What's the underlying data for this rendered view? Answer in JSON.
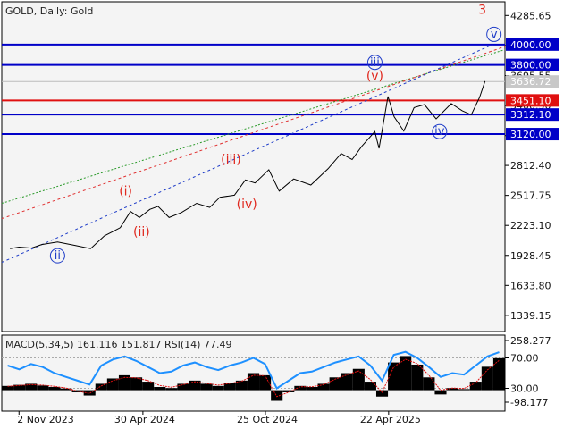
{
  "header": {
    "title": "GOLD, Daily:  Gold"
  },
  "colors": {
    "background": "#f4f4f4",
    "price_line": "#000000",
    "blue_level": "#0000c8",
    "red_level": "#e01010",
    "wave_red": "#e0281e",
    "wave_blue": "#1e3cc8",
    "macd_histogram": "#000000",
    "macd_signal": "#e01010",
    "rsi_line": "#1e90ff"
  },
  "chart_data": [
    {
      "type": "line",
      "symbol": "GOLD",
      "timeframe": "Daily",
      "ylim": [
        1180,
        4420
      ],
      "y_ticks": [
        "4285.65",
        "3990.60",
        "3695.55",
        "3400.50",
        "3105.45",
        "2812.40",
        "2517.75",
        "2223.10",
        "1928.45",
        "1633.80",
        "1339.15"
      ],
      "x_ticks": [
        "2 Nov 2023",
        "30 Apr 2024",
        "25 Oct 2024",
        "22 Apr 2025"
      ],
      "current_price": {
        "label": "3636.72",
        "value": 3636.72
      },
      "levels": [
        {
          "label": "4000.00",
          "value": 4000.0,
          "color": "blue"
        },
        {
          "label": "3800.00",
          "value": 3800.0,
          "color": "blue"
        },
        {
          "label": "3451.10",
          "value": 3451.1,
          "color": "red"
        },
        {
          "label": "3312.10",
          "value": 3312.1,
          "color": "blue"
        },
        {
          "label": "3120.00",
          "value": 3120.0,
          "color": "blue"
        }
      ],
      "series": [
        {
          "x": [
            "2023-10-20",
            "2023-11-02",
            "2023-11-20",
            "2023-12-05",
            "2023-12-28",
            "2024-01-20",
            "2024-02-14",
            "2024-03-05",
            "2024-03-28",
            "2024-04-12",
            "2024-04-25",
            "2024-05-10",
            "2024-05-22",
            "2024-06-07",
            "2024-06-25",
            "2024-07-17",
            "2024-08-05",
            "2024-08-20",
            "2024-09-10",
            "2024-09-26",
            "2024-10-10",
            "2024-10-30",
            "2024-11-14",
            "2024-12-05",
            "2024-12-30",
            "2025-01-24",
            "2025-02-12",
            "2025-02-28",
            "2025-03-14",
            "2025-04-02",
            "2025-04-08",
            "2025-04-21",
            "2025-04-30",
            "2025-05-14",
            "2025-05-29",
            "2025-06-13",
            "2025-06-30",
            "2025-07-22",
            "2025-08-07",
            "2025-08-20",
            "2025-09-01",
            "2025-09-09"
          ],
          "values": [
            1995,
            2010,
            2000,
            2035,
            2060,
            2030,
            1995,
            2120,
            2200,
            2360,
            2300,
            2380,
            2410,
            2300,
            2350,
            2440,
            2400,
            2500,
            2520,
            2670,
            2640,
            2770,
            2560,
            2680,
            2620,
            2780,
            2930,
            2870,
            3000,
            3145,
            2980,
            3490,
            3290,
            3150,
            3380,
            3410,
            3270,
            3420,
            3350,
            3310,
            3480,
            3640
          ]
        }
      ],
      "wave_labels": [
        {
          "label": "3",
          "color": "red"
        },
        {
          "label": "(i)",
          "color": "red"
        },
        {
          "label": "(ii)",
          "color": "red"
        },
        {
          "label": "(iii)",
          "color": "red"
        },
        {
          "label": "(iv)",
          "color": "red"
        },
        {
          "label": "(v)",
          "color": "red"
        },
        {
          "label": "ii",
          "color": "blue"
        },
        {
          "label": "iii",
          "color": "blue"
        },
        {
          "label": "iv",
          "color": "blue"
        },
        {
          "label": "v",
          "color": "blue"
        }
      ]
    },
    {
      "type": "area",
      "title": "MACD(5,34,5) 161.116 151.817 RSI(14) 77.49",
      "macd_params": "5,34,5",
      "macd_value": 161.116,
      "macd_signal_value": 151.817,
      "rsi_period": 14,
      "rsi_value": 77.49,
      "y_ticks": [
        "258.277",
        "70.00",
        "30.00",
        "-98.177"
      ],
      "ylim": [
        -98.177,
        258.277
      ],
      "rsi_levels": [
        70,
        30
      ],
      "histogram": [
        20,
        25,
        30,
        22,
        15,
        8,
        -10,
        -25,
        30,
        55,
        70,
        60,
        40,
        15,
        10,
        30,
        45,
        30,
        20,
        35,
        45,
        80,
        70,
        -50,
        -10,
        20,
        15,
        30,
        60,
        80,
        100,
        40,
        -30,
        130,
        160,
        120,
        60,
        -20,
        10,
        5,
        40,
        110,
        150
      ],
      "signal": [
        18,
        22,
        26,
        24,
        18,
        10,
        -5,
        -15,
        20,
        45,
        60,
        58,
        45,
        22,
        14,
        26,
        40,
        32,
        24,
        32,
        42,
        70,
        68,
        -30,
        -10,
        16,
        16,
        26,
        52,
        72,
        90,
        50,
        -10,
        110,
        145,
        125,
        70,
        0,
        10,
        8,
        35,
        95,
        140
      ],
      "rsi": [
        60,
        55,
        62,
        58,
        50,
        45,
        40,
        35,
        60,
        68,
        72,
        66,
        58,
        50,
        52,
        60,
        64,
        58,
        54,
        60,
        64,
        70,
        62,
        30,
        40,
        50,
        52,
        58,
        64,
        68,
        72,
        60,
        40,
        74,
        78,
        70,
        58,
        45,
        50,
        48,
        60,
        72,
        77.49
      ]
    }
  ]
}
